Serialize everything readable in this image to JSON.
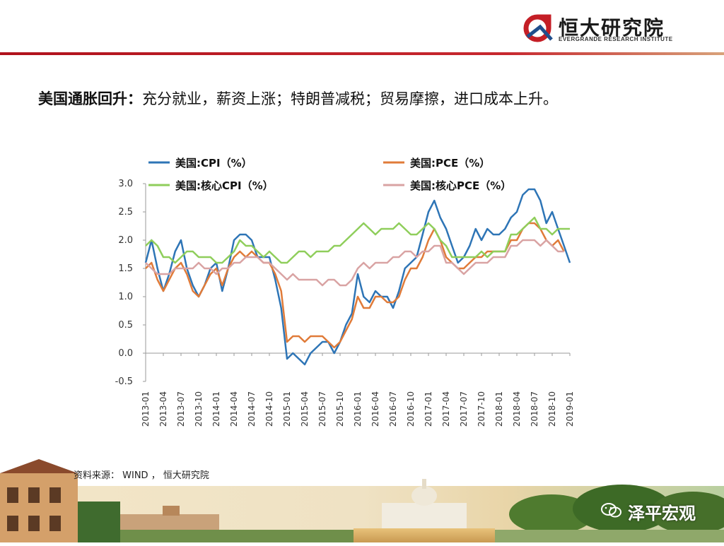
{
  "brand": {
    "name_cn": "恒大研究院",
    "name_en": "EVERGRANDE RESEARCH INSTITUTE",
    "accent": "#c41e26"
  },
  "headline": {
    "bold": "美国通胀回升：",
    "text": "充分就业，薪资上涨；特朗普减税；贸易摩擦，进口成本上升。"
  },
  "source": "资料来源： WIND ， 恒大研究院",
  "watermark": "泽平宏观",
  "chart_data": {
    "type": "line",
    "title": "",
    "xlabel": "",
    "ylabel": "",
    "ylim": [
      -0.5,
      3.0
    ],
    "yticks": [
      "3.0",
      "2.5",
      "2.0",
      "1.5",
      "1.0",
      "0.5",
      "0.0",
      "-0.5"
    ],
    "xticks": [
      "2013-01",
      "2013-04",
      "2013-07",
      "2013-10",
      "2014-01",
      "2014-04",
      "2014-07",
      "2014-10",
      "2015-01",
      "2015-04",
      "2015-07",
      "2015-10",
      "2016-01",
      "2016-04",
      "2016-07",
      "2016-10",
      "2017-01",
      "2017-04",
      "2017-07",
      "2017-10",
      "2018-01",
      "2018-04",
      "2018-07",
      "2018-10",
      "2019-01"
    ],
    "legend_placement": "top",
    "grid": false,
    "series": [
      {
        "name": "美国:CPI（%）",
        "color": "#2e75b6",
        "values": [
          1.6,
          2.0,
          1.5,
          1.1,
          1.4,
          1.8,
          2.0,
          1.5,
          1.2,
          1.0,
          1.2,
          1.5,
          1.6,
          1.1,
          1.5,
          2.0,
          2.1,
          2.1,
          2.0,
          1.7,
          1.7,
          1.7,
          1.3,
          0.8,
          -0.1,
          0.0,
          -0.1,
          -0.2,
          0.0,
          0.1,
          0.2,
          0.2,
          0.0,
          0.2,
          0.5,
          0.7,
          1.4,
          1.0,
          0.9,
          1.1,
          1.0,
          1.0,
          0.8,
          1.1,
          1.5,
          1.6,
          1.7,
          2.1,
          2.5,
          2.7,
          2.4,
          2.2,
          1.9,
          1.6,
          1.7,
          1.9,
          2.2,
          2.0,
          2.2,
          2.1,
          2.1,
          2.2,
          2.4,
          2.5,
          2.8,
          2.9,
          2.9,
          2.7,
          2.3,
          2.5,
          2.2,
          1.9,
          1.6
        ]
      },
      {
        "name": "美国:PCE（%）",
        "color": "#e07b39",
        "values": [
          1.5,
          1.6,
          1.3,
          1.1,
          1.3,
          1.5,
          1.6,
          1.4,
          1.1,
          1.0,
          1.2,
          1.4,
          1.5,
          1.2,
          1.5,
          1.7,
          1.8,
          1.7,
          1.8,
          1.7,
          1.6,
          1.6,
          1.4,
          1.1,
          0.2,
          0.3,
          0.3,
          0.2,
          0.3,
          0.3,
          0.3,
          0.2,
          0.1,
          0.2,
          0.4,
          0.6,
          1.0,
          0.8,
          0.8,
          1.0,
          1.0,
          0.9,
          0.9,
          1.0,
          1.3,
          1.5,
          1.5,
          1.7,
          2.0,
          2.2,
          2.0,
          1.7,
          1.6,
          1.5,
          1.5,
          1.6,
          1.7,
          1.7,
          1.8,
          1.8,
          1.8,
          1.8,
          2.0,
          2.0,
          2.2,
          2.3,
          2.3,
          2.2,
          2.0,
          1.9,
          2.0,
          1.8
        ]
      },
      {
        "name": "美国:核心CPI（%）",
        "color": "#8fce5b",
        "values": [
          1.9,
          2.0,
          1.9,
          1.7,
          1.7,
          1.6,
          1.7,
          1.8,
          1.8,
          1.7,
          1.7,
          1.7,
          1.6,
          1.6,
          1.7,
          1.8,
          2.0,
          1.9,
          1.9,
          1.8,
          1.7,
          1.8,
          1.7,
          1.6,
          1.6,
          1.7,
          1.8,
          1.8,
          1.7,
          1.8,
          1.8,
          1.8,
          1.9,
          1.9,
          2.0,
          2.1,
          2.2,
          2.3,
          2.2,
          2.1,
          2.2,
          2.2,
          2.2,
          2.3,
          2.2,
          2.1,
          2.1,
          2.2,
          2.3,
          2.2,
          2.0,
          1.9,
          1.7,
          1.7,
          1.7,
          1.7,
          1.7,
          1.8,
          1.7,
          1.8,
          1.8,
          1.8,
          2.1,
          2.1,
          2.2,
          2.3,
          2.4,
          2.2,
          2.2,
          2.1,
          2.2,
          2.2,
          2.2
        ]
      },
      {
        "name": "美国:核心PCE（%）",
        "color": "#d9a3a3",
        "values": [
          1.6,
          1.5,
          1.4,
          1.4,
          1.4,
          1.5,
          1.5,
          1.5,
          1.5,
          1.6,
          1.5,
          1.5,
          1.4,
          1.5,
          1.5,
          1.6,
          1.6,
          1.7,
          1.7,
          1.7,
          1.6,
          1.6,
          1.5,
          1.4,
          1.3,
          1.4,
          1.3,
          1.3,
          1.3,
          1.3,
          1.2,
          1.3,
          1.3,
          1.2,
          1.2,
          1.3,
          1.5,
          1.6,
          1.5,
          1.6,
          1.6,
          1.6,
          1.7,
          1.7,
          1.8,
          1.8,
          1.7,
          1.8,
          1.8,
          1.9,
          1.9,
          1.6,
          1.6,
          1.5,
          1.4,
          1.5,
          1.6,
          1.6,
          1.6,
          1.7,
          1.7,
          1.7,
          1.9,
          1.9,
          2.0,
          2.0,
          2.0,
          1.9,
          2.0,
          1.9,
          1.8,
          1.8
        ]
      }
    ]
  }
}
